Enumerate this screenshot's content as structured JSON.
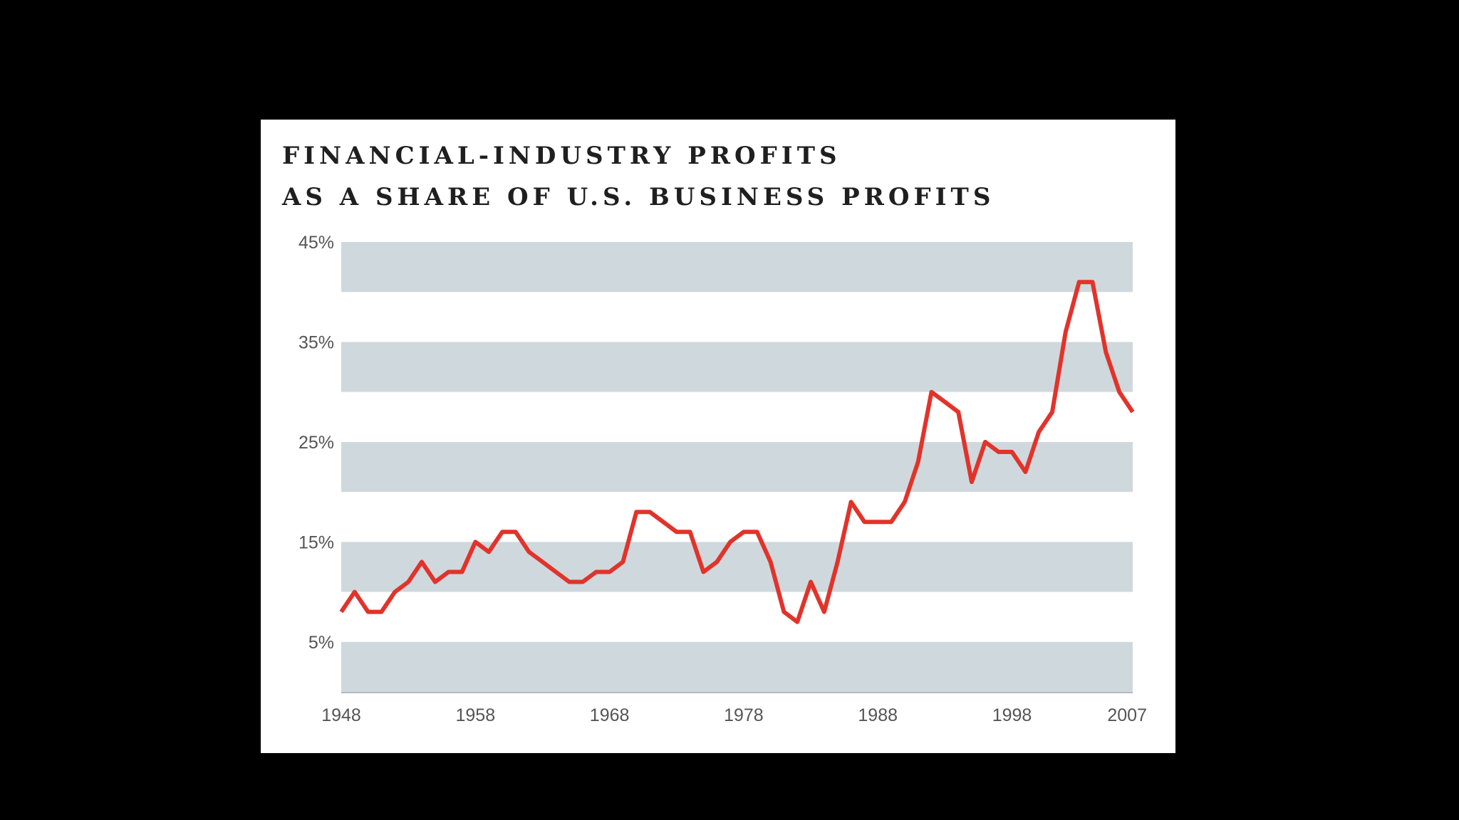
{
  "chart_data": {
    "type": "line",
    "title_lines": [
      "FINANCIAL-INDUSTRY PROFITS",
      "AS A SHARE OF U.S. BUSINESS PROFITS"
    ],
    "xlabel": "",
    "ylabel": "",
    "xlim": [
      1948,
      2007
    ],
    "ylim": [
      0,
      45
    ],
    "x_ticks": [
      {
        "value": 1948,
        "label": "1948"
      },
      {
        "value": 1958,
        "label": "1958"
      },
      {
        "value": 1968,
        "label": "1968"
      },
      {
        "value": 1978,
        "label": "1978"
      },
      {
        "value": 1988,
        "label": "1988"
      },
      {
        "value": 1998,
        "label": "1998"
      },
      {
        "value": 2007,
        "label": "2007"
      }
    ],
    "y_ticks": [
      {
        "value": 5,
        "label": "5%"
      },
      {
        "value": 15,
        "label": "15%"
      },
      {
        "value": 25,
        "label": "25%"
      },
      {
        "value": 35,
        "label": "35%"
      },
      {
        "value": 45,
        "label": "45%"
      }
    ],
    "bands": [
      [
        0,
        5
      ],
      [
        10,
        15
      ],
      [
        20,
        25
      ],
      [
        30,
        35
      ],
      [
        40,
        45
      ]
    ],
    "band_color": "#cfd9dd",
    "line_color": "#e2332b",
    "legend": "none",
    "series": [
      {
        "x": [
          1948,
          1949,
          1950,
          1951,
          1952,
          1953,
          1954,
          1955,
          1956,
          1957,
          1958,
          1959,
          1960,
          1961,
          1962,
          1963,
          1964,
          1965,
          1966,
          1967,
          1968,
          1969,
          1970,
          1971,
          1972,
          1973,
          1974,
          1975,
          1976,
          1977,
          1978,
          1979,
          1980,
          1981,
          1982,
          1983,
          1984,
          1985,
          1986,
          1987,
          1988,
          1989,
          1990,
          1991,
          1992,
          1993,
          1994,
          1995,
          1996,
          1997,
          1998,
          1999,
          2000,
          2001,
          2002,
          2003,
          2004,
          2005,
          2006,
          2007
        ],
        "values": [
          8,
          10,
          8,
          8,
          10,
          11,
          13,
          11,
          12,
          12,
          15,
          14,
          16,
          16,
          14,
          13,
          12,
          11,
          11,
          12,
          12,
          13,
          18,
          18,
          17,
          16,
          16,
          12,
          13,
          15,
          16,
          16,
          13,
          8,
          7,
          11,
          8,
          13,
          19,
          17,
          17,
          17,
          19,
          23,
          30,
          29,
          28,
          21,
          25,
          24,
          24,
          22,
          26,
          28,
          36,
          41,
          41,
          34,
          30,
          28
        ]
      }
    ]
  }
}
